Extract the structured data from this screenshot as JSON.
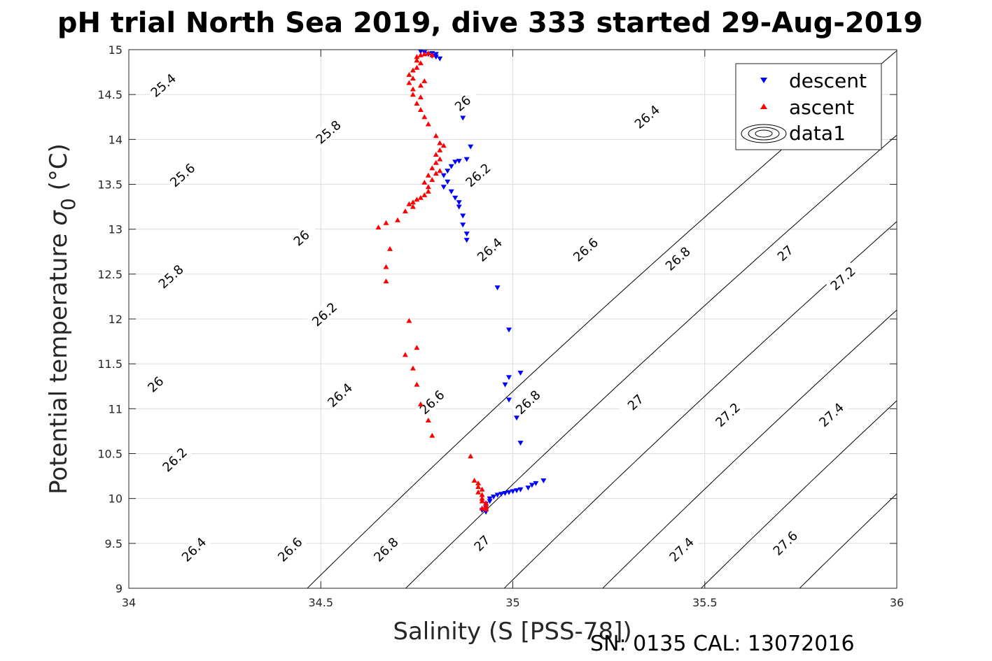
{
  "chart_data": {
    "type": "scatter",
    "title": "pH trial North Sea 2019, dive 333 started 29-Aug-2019",
    "xlabel": "Salinity (S [PSS-78])",
    "ylabel_prefix": "Potential temperature ",
    "ylabel_sigma": "σ",
    "ylabel_sub": "0",
    "ylabel_suffix": " (°C)",
    "xlim": [
      34,
      36
    ],
    "ylim": [
      9,
      15
    ],
    "xticks": [
      "34",
      "34.5",
      "35",
      "35.5",
      "36"
    ],
    "yticks": [
      "9",
      "9.5",
      "10",
      "10.5",
      "11",
      "11.5",
      "12",
      "12.5",
      "13",
      "13.5",
      "14",
      "14.5",
      "15"
    ],
    "grid": true,
    "legend_position": "top-right",
    "footer": "SN: 0135  CAL: 13072016",
    "colors": {
      "descent": "#0000ff",
      "ascent": "#ff0000",
      "contour": "#000000",
      "grid": "#dcdcdc"
    },
    "contours": {
      "levels": [
        25.4,
        25.6,
        25.8,
        26.0,
        26.2,
        26.4,
        26.6,
        26.8,
        27.0,
        27.2,
        27.4,
        27.6
      ],
      "labels": [
        {
          "text": "25.4",
          "x": 34.09,
          "y": 14.6
        },
        {
          "text": "25.8",
          "x": 34.52,
          "y": 14.08
        },
        {
          "text": "26",
          "x": 34.87,
          "y": 14.4
        },
        {
          "text": "26.4",
          "x": 35.35,
          "y": 14.25
        },
        {
          "text": "25.6",
          "x": 34.14,
          "y": 13.6
        },
        {
          "text": "26.2",
          "x": 34.91,
          "y": 13.6
        },
        {
          "text": "26",
          "x": 34.45,
          "y": 12.9
        },
        {
          "text": "26.4",
          "x": 34.94,
          "y": 12.77
        },
        {
          "text": "26.6",
          "x": 35.19,
          "y": 12.77
        },
        {
          "text": "26.8",
          "x": 35.43,
          "y": 12.67
        },
        {
          "text": "27",
          "x": 35.71,
          "y": 12.73
        },
        {
          "text": "27.2",
          "x": 35.86,
          "y": 12.45
        },
        {
          "text": "25.8",
          "x": 34.11,
          "y": 12.47
        },
        {
          "text": "26.2",
          "x": 34.51,
          "y": 12.05
        },
        {
          "text": "26",
          "x": 34.07,
          "y": 11.27
        },
        {
          "text": "26.4",
          "x": 34.55,
          "y": 11.15
        },
        {
          "text": "26.6",
          "x": 34.79,
          "y": 11.07
        },
        {
          "text": "26.8",
          "x": 35.04,
          "y": 11.07
        },
        {
          "text": "27",
          "x": 35.32,
          "y": 11.07
        },
        {
          "text": "27.2",
          "x": 35.56,
          "y": 10.93
        },
        {
          "text": "27.4",
          "x": 35.83,
          "y": 10.93
        },
        {
          "text": "26.2",
          "x": 34.12,
          "y": 10.43
        },
        {
          "text": "26.4",
          "x": 34.17,
          "y": 9.43
        },
        {
          "text": "26.6",
          "x": 34.42,
          "y": 9.43
        },
        {
          "text": "26.8",
          "x": 34.67,
          "y": 9.43
        },
        {
          "text": "27",
          "x": 34.92,
          "y": 9.5
        },
        {
          "text": "27.4",
          "x": 35.44,
          "y": 9.43
        },
        {
          "text": "27.6",
          "x": 35.71,
          "y": 9.5
        }
      ]
    },
    "series": [
      {
        "name": "descent",
        "marker": "triangle-down",
        "points": [
          [
            34.76,
            14.98
          ],
          [
            34.77,
            14.97
          ],
          [
            34.78,
            14.95
          ],
          [
            34.79,
            14.93
          ],
          [
            34.8,
            14.92
          ],
          [
            34.81,
            14.9
          ],
          [
            34.8,
            14.95
          ],
          [
            34.79,
            14.96
          ],
          [
            34.87,
            14.24
          ],
          [
            34.89,
            13.92
          ],
          [
            34.88,
            13.78
          ],
          [
            34.86,
            13.76
          ],
          [
            34.85,
            13.75
          ],
          [
            34.84,
            13.7
          ],
          [
            34.83,
            13.65
          ],
          [
            34.82,
            13.6
          ],
          [
            34.83,
            13.53
          ],
          [
            34.82,
            13.47
          ],
          [
            34.84,
            13.42
          ],
          [
            34.85,
            13.35
          ],
          [
            34.86,
            13.3
          ],
          [
            34.86,
            13.25
          ],
          [
            34.87,
            13.15
          ],
          [
            34.87,
            13.05
          ],
          [
            34.88,
            12.95
          ],
          [
            34.88,
            12.88
          ],
          [
            34.96,
            12.35
          ],
          [
            34.99,
            11.88
          ],
          [
            35.02,
            11.4
          ],
          [
            34.99,
            11.35
          ],
          [
            34.98,
            11.27
          ],
          [
            34.99,
            11.1
          ],
          [
            35.01,
            10.9
          ],
          [
            35.02,
            10.62
          ],
          [
            35.08,
            10.2
          ],
          [
            35.06,
            10.17
          ],
          [
            35.05,
            10.15
          ],
          [
            35.04,
            10.12
          ],
          [
            35.02,
            10.1
          ],
          [
            35.01,
            10.09
          ],
          [
            35.0,
            10.08
          ],
          [
            34.99,
            10.07
          ],
          [
            34.98,
            10.06
          ],
          [
            34.97,
            10.05
          ],
          [
            34.96,
            10.04
          ],
          [
            34.95,
            10.02
          ],
          [
            34.94,
            10.0
          ],
          [
            34.94,
            9.97
          ],
          [
            34.93,
            9.94
          ],
          [
            34.93,
            9.9
          ],
          [
            34.92,
            9.87
          ],
          [
            34.93,
            9.85
          ]
        ]
      },
      {
        "name": "ascent",
        "marker": "triangle-up",
        "points": [
          [
            34.79,
            14.94
          ],
          [
            34.78,
            14.96
          ],
          [
            34.77,
            14.95
          ],
          [
            34.76,
            14.94
          ],
          [
            34.75,
            14.92
          ],
          [
            34.75,
            14.88
          ],
          [
            34.76,
            14.85
          ],
          [
            34.75,
            14.8
          ],
          [
            34.74,
            14.77
          ],
          [
            34.73,
            14.72
          ],
          [
            34.74,
            14.68
          ],
          [
            34.73,
            14.63
          ],
          [
            34.74,
            14.56
          ],
          [
            34.76,
            14.6
          ],
          [
            34.77,
            14.65
          ],
          [
            34.74,
            14.5
          ],
          [
            34.76,
            14.47
          ],
          [
            34.75,
            14.4
          ],
          [
            34.76,
            14.33
          ],
          [
            34.77,
            14.25
          ],
          [
            34.78,
            14.17
          ],
          [
            34.8,
            14.04
          ],
          [
            34.81,
            13.96
          ],
          [
            34.82,
            13.93
          ],
          [
            34.81,
            13.88
          ],
          [
            34.8,
            13.83
          ],
          [
            34.81,
            13.78
          ],
          [
            34.8,
            13.74
          ],
          [
            34.79,
            13.68
          ],
          [
            34.81,
            13.65
          ],
          [
            34.8,
            13.62
          ],
          [
            34.78,
            13.6
          ],
          [
            34.79,
            13.55
          ],
          [
            34.77,
            13.52
          ],
          [
            34.78,
            13.47
          ],
          [
            34.78,
            13.42
          ],
          [
            34.77,
            13.38
          ],
          [
            34.76,
            13.35
          ],
          [
            34.75,
            13.33
          ],
          [
            34.74,
            13.3
          ],
          [
            34.73,
            13.28
          ],
          [
            34.74,
            13.25
          ],
          [
            34.72,
            13.2
          ],
          [
            34.7,
            13.1
          ],
          [
            34.67,
            13.07
          ],
          [
            34.65,
            13.02
          ],
          [
            34.68,
            12.78
          ],
          [
            34.67,
            12.58
          ],
          [
            34.67,
            12.42
          ],
          [
            34.73,
            11.98
          ],
          [
            34.75,
            11.68
          ],
          [
            34.72,
            11.6
          ],
          [
            34.74,
            11.45
          ],
          [
            34.75,
            11.27
          ],
          [
            34.76,
            11.05
          ],
          [
            34.78,
            10.87
          ],
          [
            34.79,
            10.7
          ],
          [
            34.89,
            10.47
          ],
          [
            34.9,
            10.2
          ],
          [
            34.91,
            10.17
          ],
          [
            34.91,
            10.13
          ],
          [
            34.92,
            10.1
          ],
          [
            34.91,
            10.07
          ],
          [
            34.92,
            10.04
          ],
          [
            34.92,
            10.0
          ],
          [
            34.92,
            9.97
          ],
          [
            34.93,
            9.95
          ],
          [
            34.93,
            9.92
          ],
          [
            34.93,
            9.9
          ],
          [
            34.92,
            9.89
          ],
          [
            34.93,
            9.88
          ]
        ]
      },
      {
        "name": "data1",
        "marker": "contour"
      }
    ]
  }
}
